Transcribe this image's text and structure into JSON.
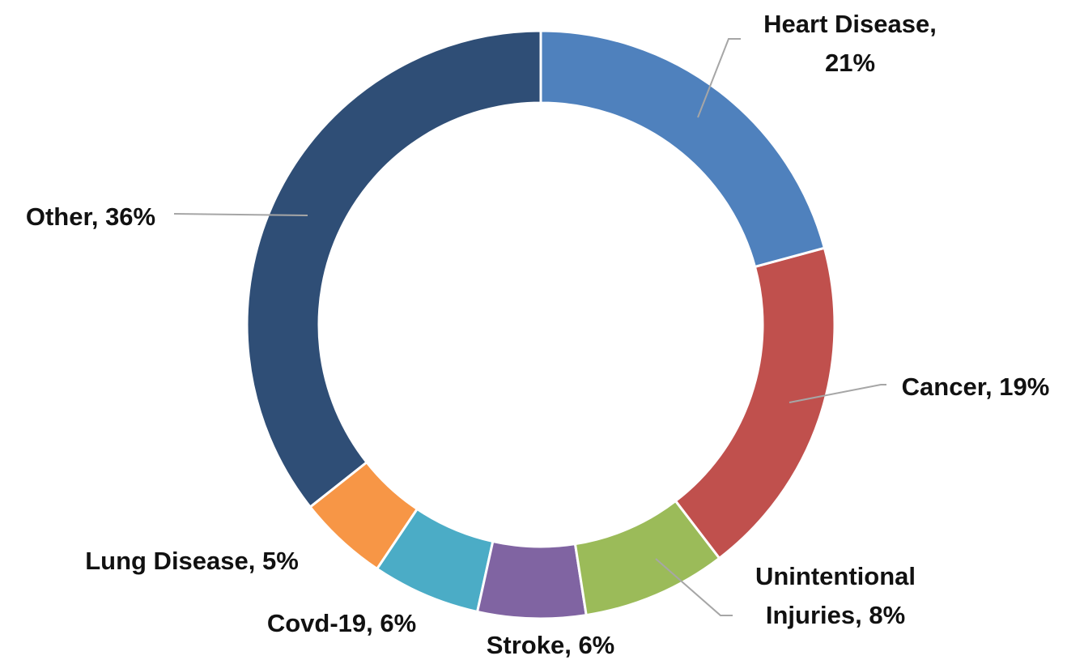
{
  "chart_data": {
    "type": "donut",
    "values": [
      21,
      19,
      8,
      6,
      6,
      5,
      36
    ],
    "value_labels": [
      "Heart Disease, 21%",
      "Cancer, 19%",
      "Unintentional Injuries, 8%",
      "Stroke, 6%",
      "Covd-19, 6%",
      "Lung Disease, 5%",
      "Other, 36%"
    ],
    "colors": [
      "#4f81bd",
      "#c0504d",
      "#9bbb59",
      "#8064a2",
      "#4bacc6",
      "#f79646",
      "#2f4e76"
    ]
  }
}
